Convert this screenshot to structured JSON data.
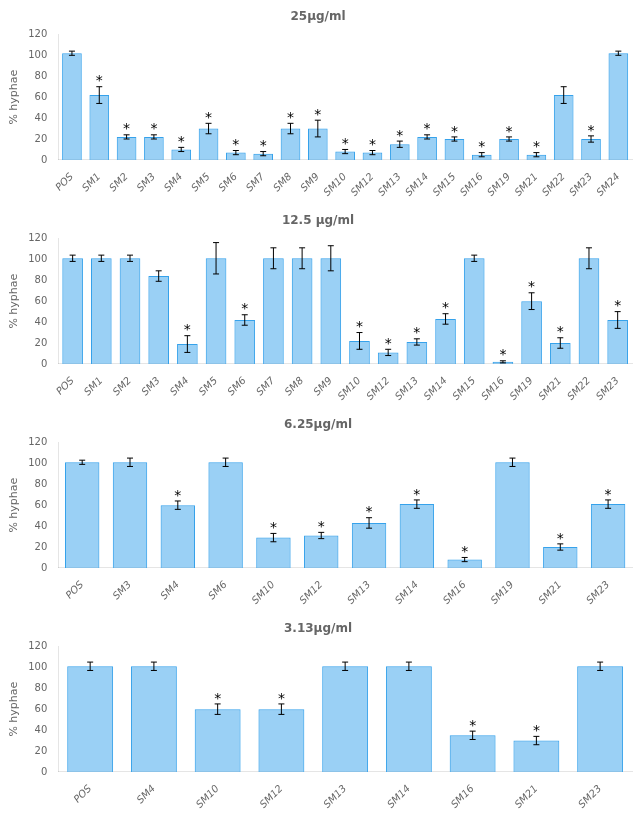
{
  "chart_data": [
    {
      "type": "bar",
      "title": "25μg/ml",
      "ylabel": "% hyphae",
      "categories": [
        "POS",
        "SM1",
        "SM2",
        "SM3",
        "SM4",
        "SM5",
        "SM6",
        "SM7",
        "SM8",
        "SM9",
        "SM10",
        "SM12",
        "SM13",
        "SM14",
        "SM15",
        "SM16",
        "SM19",
        "SM21",
        "SM22",
        "SM23",
        "SM24"
      ],
      "values": [
        102,
        62,
        22,
        22,
        10,
        30,
        7,
        6,
        30,
        30,
        8,
        7,
        15,
        22,
        20,
        5,
        20,
        5,
        62,
        20,
        102
      ],
      "errors": [
        2,
        8,
        2,
        2,
        2,
        5,
        2,
        2,
        5,
        8,
        2,
        2,
        3,
        2,
        2,
        2,
        2,
        2,
        8,
        3,
        2
      ],
      "annotations": [
        {
          "category": "SM1",
          "text": "*"
        },
        {
          "category": "SM2",
          "text": "*"
        },
        {
          "category": "SM3",
          "text": "*"
        },
        {
          "category": "SM4",
          "text": "*"
        },
        {
          "category": "SM5",
          "text": "*"
        },
        {
          "category": "SM6",
          "text": "*"
        },
        {
          "category": "SM7",
          "text": "*"
        },
        {
          "category": "SM8",
          "text": "*"
        },
        {
          "category": "SM9",
          "text": "*"
        },
        {
          "category": "SM10",
          "text": "*"
        },
        {
          "category": "SM12",
          "text": "*"
        },
        {
          "category": "SM13",
          "text": "*"
        },
        {
          "category": "SM14",
          "text": "*"
        },
        {
          "category": "SM15",
          "text": "*"
        },
        {
          "category": "SM16",
          "text": "*"
        },
        {
          "category": "SM19",
          "text": "*"
        },
        {
          "category": "SM21",
          "text": "*"
        },
        {
          "category": "SM23",
          "text": "*"
        }
      ],
      "ylim": [
        0,
        120
      ],
      "yticks": [
        0,
        20,
        40,
        60,
        80,
        100,
        120
      ],
      "grid": false
    },
    {
      "type": "bar",
      "title": "12.5 μg/ml",
      "ylabel": "% hyphae",
      "categories": [
        "POS",
        "SM1",
        "SM2",
        "SM3",
        "SM4",
        "SM5",
        "SM6",
        "SM7",
        "SM8",
        "SM9",
        "SM10",
        "SM12",
        "SM13",
        "SM14",
        "SM15",
        "SM16",
        "SM19",
        "SM21",
        "SM22",
        "SM23"
      ],
      "values": [
        101,
        101,
        101,
        84,
        19,
        101,
        42,
        101,
        101,
        101,
        22,
        11,
        21,
        43,
        101,
        2,
        60,
        20,
        101,
        42
      ],
      "errors": [
        3,
        3,
        3,
        5,
        8,
        15,
        5,
        10,
        10,
        12,
        8,
        3,
        3,
        5,
        3,
        1,
        8,
        5,
        10,
        8
      ],
      "annotations": [
        {
          "category": "SM4",
          "text": "*"
        },
        {
          "category": "SM6",
          "text": "*"
        },
        {
          "category": "SM10",
          "text": "*"
        },
        {
          "category": "SM12",
          "text": "*"
        },
        {
          "category": "SM13",
          "text": "*"
        },
        {
          "category": "SM14",
          "text": "*"
        },
        {
          "category": "SM16",
          "text": "*"
        },
        {
          "category": "SM19",
          "text": "*"
        },
        {
          "category": "SM21",
          "text": "*"
        },
        {
          "category": "SM23",
          "text": "*"
        }
      ],
      "ylim": [
        0,
        120
      ],
      "yticks": [
        0,
        20,
        40,
        60,
        80,
        100,
        120
      ],
      "grid": false
    },
    {
      "type": "bar",
      "title": "6.25μg/ml",
      "ylabel": "% hyphae",
      "categories": [
        "POS",
        "SM3",
        "SM4",
        "SM6",
        "SM10",
        "SM12",
        "SM13",
        "SM14",
        "SM16",
        "SM19",
        "SM21",
        "SM23"
      ],
      "values": [
        101,
        101,
        60,
        101,
        29,
        31,
        43,
        61,
        8,
        101,
        20,
        61
      ],
      "errors": [
        2,
        4,
        4,
        4,
        4,
        3,
        5,
        4,
        2,
        4,
        3,
        4
      ],
      "annotations": [
        {
          "category": "SM4",
          "text": "*"
        },
        {
          "category": "SM10",
          "text": "*"
        },
        {
          "category": "SM12",
          "text": "*"
        },
        {
          "category": "SM13",
          "text": "*"
        },
        {
          "category": "SM14",
          "text": "*"
        },
        {
          "category": "SM16",
          "text": "*"
        },
        {
          "category": "SM21",
          "text": "*"
        },
        {
          "category": "SM23",
          "text": "*"
        }
      ],
      "ylim": [
        0,
        120
      ],
      "yticks": [
        0,
        20,
        40,
        60,
        80,
        100,
        120
      ],
      "grid": false
    },
    {
      "type": "bar",
      "title": "3.13μg/ml",
      "ylabel": "% hyphae",
      "categories": [
        "POS",
        "SM4",
        "SM10",
        "SM12",
        "SM13",
        "SM14",
        "SM16",
        "SM21",
        "SM23"
      ],
      "values": [
        101,
        101,
        60,
        60,
        101,
        101,
        35,
        30,
        101
      ],
      "errors": [
        4,
        4,
        5,
        5,
        4,
        4,
        4,
        4,
        4
      ],
      "annotations": [
        {
          "category": "SM10",
          "text": "*"
        },
        {
          "category": "SM12",
          "text": "*"
        },
        {
          "category": "SM16",
          "text": "*"
        },
        {
          "category": "SM21",
          "text": "*"
        }
      ],
      "ylim": [
        0,
        120
      ],
      "yticks": [
        0,
        20,
        40,
        60,
        80,
        100,
        120
      ],
      "grid": false
    }
  ]
}
